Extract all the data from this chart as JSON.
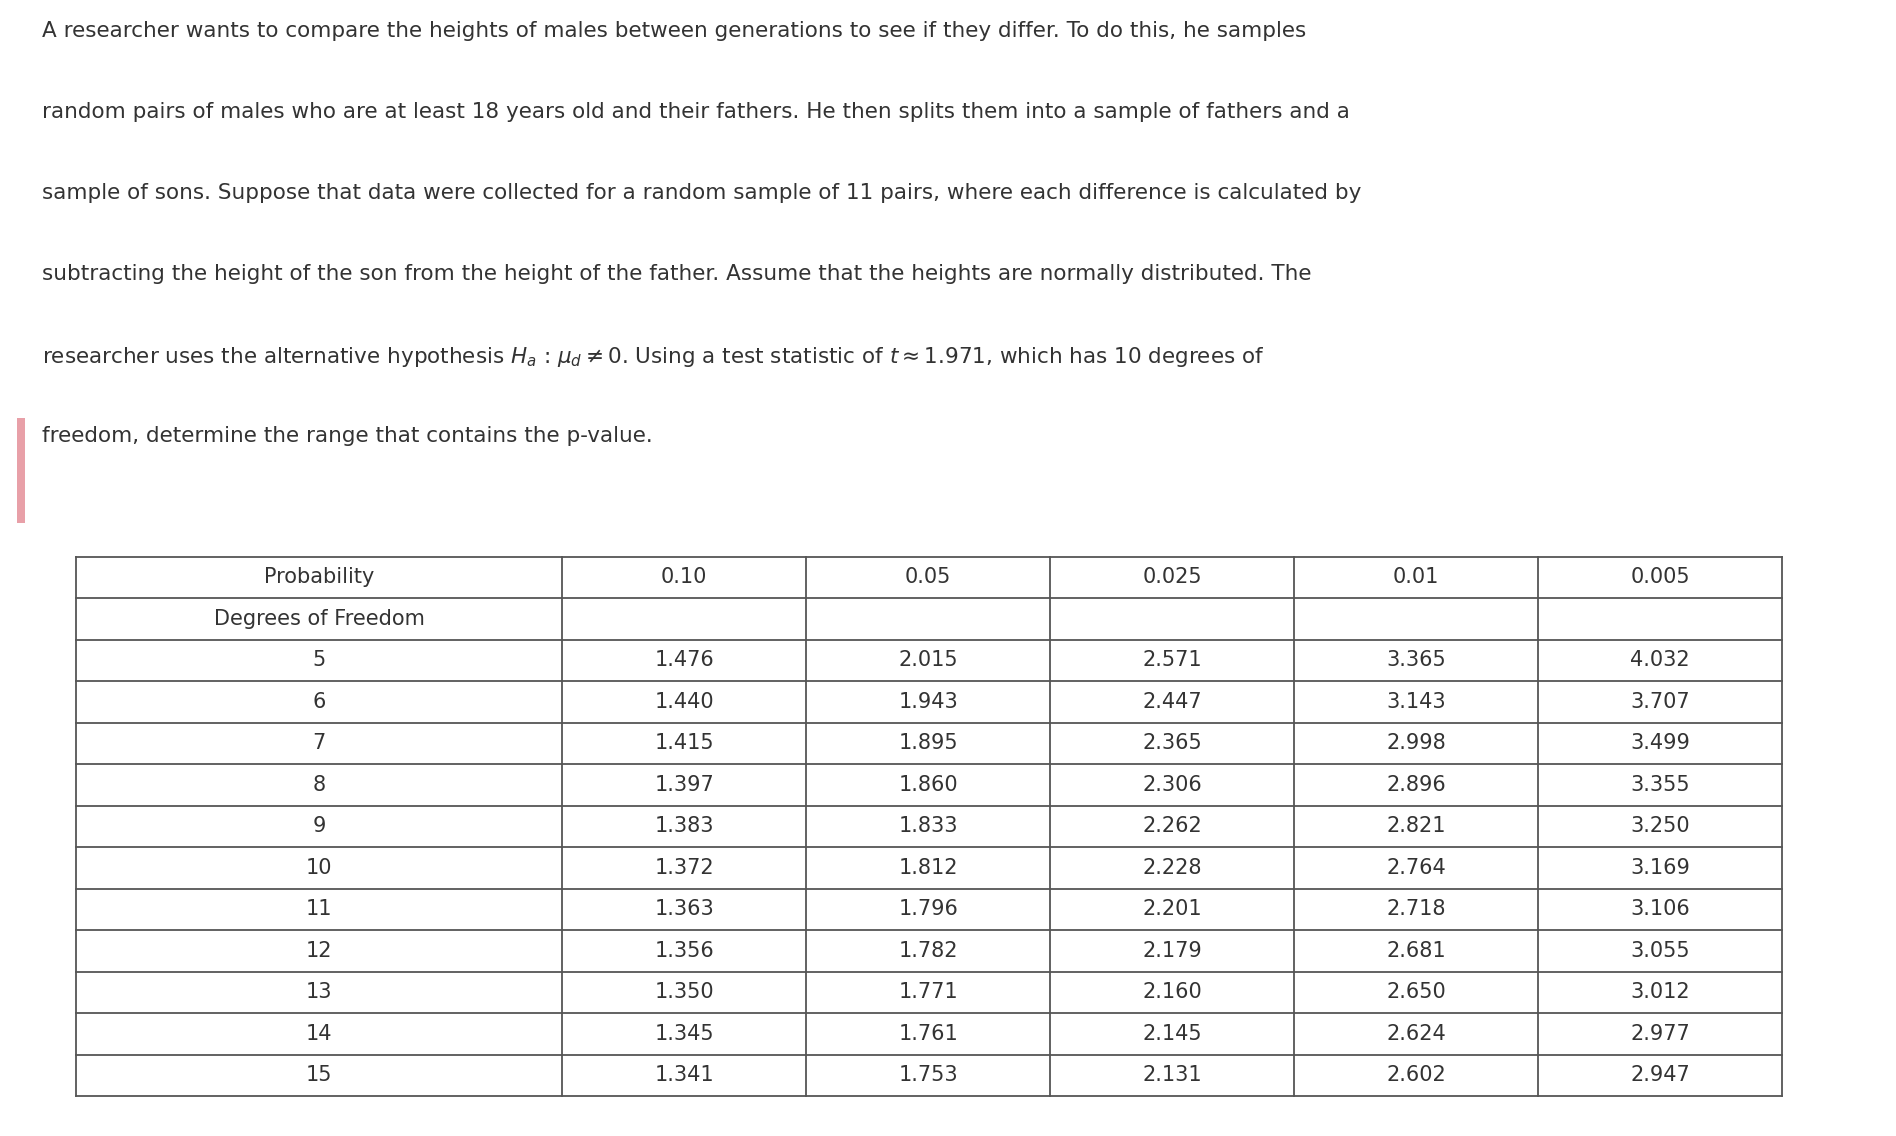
{
  "paragraph_lines": [
    "A researcher wants to compare the heights of males between generations to see if they differ. To do this, he samples",
    "random pairs of males who are at least 18 years old and their fathers. He then splits them into a sample of fathers and a",
    "sample of sons. Suppose that data were collected for a random sample of 11 pairs, where each difference is calculated by",
    "subtracting the height of the son from the height of the father. Assume that the heights are normally distributed. The",
    "researcher uses the alternative hypothesis $H_a$ : $\\mu_d \\neq 0$. Using a test statistic of $t \\approx 1.971$, which has 10 degrees of",
    "freedom, determine the range that contains the p-value."
  ],
  "col_headers": [
    "Probability",
    "0.10",
    "0.05",
    "0.025",
    "0.01",
    "0.005"
  ],
  "row_label_header": "Degrees of Freedom",
  "degrees_of_freedom": [
    5,
    6,
    7,
    8,
    9,
    10,
    11,
    12,
    13,
    14,
    15
  ],
  "table_data": [
    [
      1.476,
      2.015,
      2.571,
      3.365,
      4.032
    ],
    [
      1.44,
      1.943,
      2.447,
      3.143,
      3.707
    ],
    [
      1.415,
      1.895,
      2.365,
      2.998,
      3.499
    ],
    [
      1.397,
      1.86,
      2.306,
      2.896,
      3.355
    ],
    [
      1.383,
      1.833,
      2.262,
      2.821,
      3.25
    ],
    [
      1.372,
      1.812,
      2.228,
      2.764,
      3.169
    ],
    [
      1.363,
      1.796,
      2.201,
      2.718,
      3.106
    ],
    [
      1.356,
      1.782,
      2.179,
      2.681,
      3.055
    ],
    [
      1.35,
      1.771,
      2.16,
      2.65,
      3.012
    ],
    [
      1.345,
      1.761,
      2.145,
      2.624,
      2.977
    ],
    [
      1.341,
      1.753,
      2.131,
      2.602,
      2.947
    ]
  ],
  "background_color": "#ffffff",
  "text_color": "#333333",
  "table_border_color": "#555555",
  "font_size_paragraph": 15.5,
  "font_size_table": 15.0,
  "accent_bar_color": "#e8a0a8"
}
